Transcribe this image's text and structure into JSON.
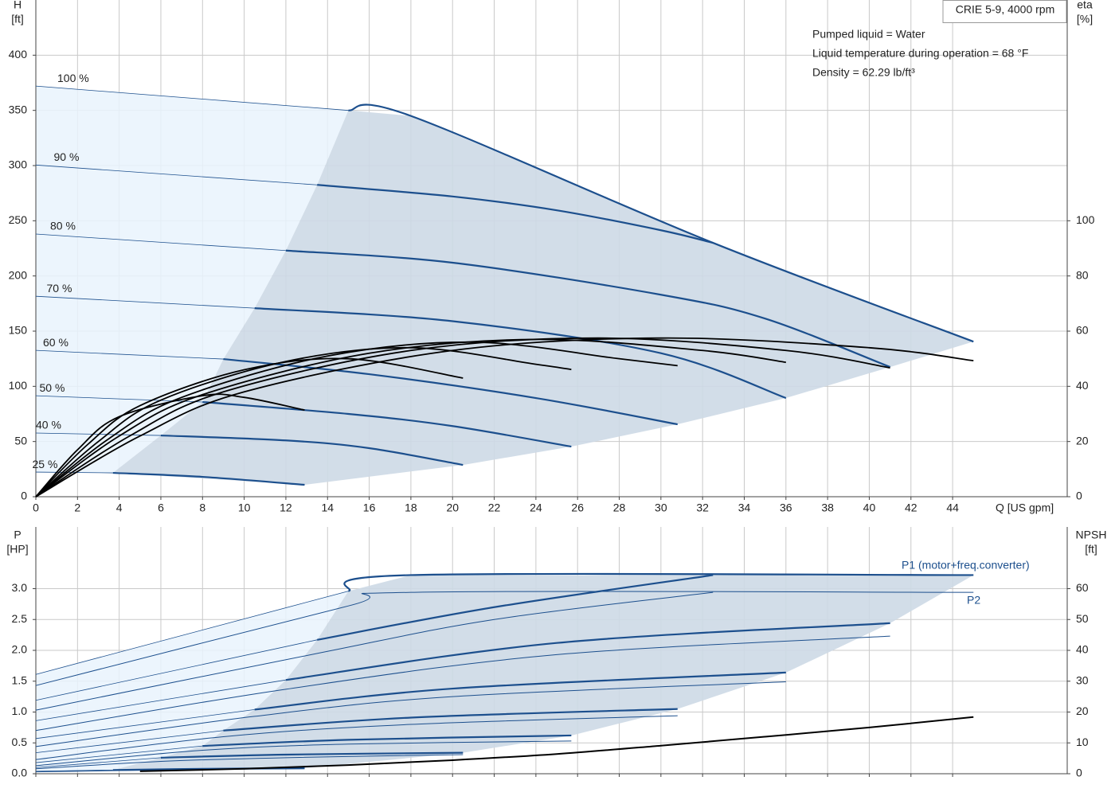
{
  "chart_data": [
    {
      "type": "line",
      "legend_box": "CRIE 5-9, 4000 rpm",
      "annotations": [
        "Pumped liquid = Water",
        "Liquid temperature during operation = 68 °F",
        "Density = 62.29 lb/ft³"
      ],
      "x_label": "Q [US gpm]",
      "y_label": "H",
      "y_unit": "[ft]",
      "y2_label": "eta",
      "y2_unit": "[%]",
      "xlim": [
        0,
        49.5
      ],
      "xticks": [
        0,
        2,
        4,
        6,
        8,
        10,
        12,
        14,
        16,
        18,
        20,
        22,
        24,
        26,
        28,
        30,
        32,
        34,
        36,
        38,
        40,
        42,
        44
      ],
      "x_tick_labels": true,
      "ylim": [
        0,
        450
      ],
      "yticks": [
        0,
        50,
        100,
        150,
        200,
        250,
        300,
        350,
        400
      ],
      "y2lim": [
        0,
        180
      ],
      "y2ticks": [
        0,
        20,
        40,
        60,
        80,
        100
      ],
      "grid": true,
      "curve_color": "#1c4f8d",
      "eta_color": "#000000",
      "area_color": "#cdd9e6",
      "light_area_color": "#e9f3fd",
      "series": [
        {
          "name": "100 %",
          "x": [
            0,
            15,
            18,
            32.5,
            45
          ],
          "values": [
            372,
            350,
            345,
            230,
            140.5
          ]
        },
        {
          "name": "90 %",
          "x": [
            0,
            13.5,
            20,
            25,
            30,
            32.5
          ],
          "values": [
            300.5,
            282.5,
            272,
            259.5,
            241.4,
            230
          ]
        },
        {
          "name": "80 %",
          "x": [
            0,
            12,
            20,
            30,
            35,
            41
          ],
          "values": [
            238,
            223,
            212,
            183,
            161.4,
            117.5
          ]
        },
        {
          "name": "70 %",
          "x": [
            0,
            10.5,
            20,
            30,
            36
          ],
          "values": [
            181.6,
            170.8,
            159,
            130,
            89.4
          ]
        },
        {
          "name": "60 %",
          "x": [
            0,
            9,
            16,
            24,
            30.8
          ],
          "values": [
            132.6,
            124.7,
            111,
            89.4,
            65.6
          ]
        },
        {
          "name": "50 %",
          "x": [
            0,
            8,
            15,
            20,
            25.7
          ],
          "values": [
            91.5,
            85.8,
            75,
            64,
            45.4
          ]
        },
        {
          "name": "40 %",
          "x": [
            0,
            6,
            12,
            16,
            20.5
          ],
          "values": [
            57.7,
            55.5,
            51,
            44,
            28.8
          ]
        },
        {
          "name": "25 %",
          "x": [
            0,
            3.7,
            8,
            12.9
          ],
          "values": [
            22.3,
            21.6,
            18,
            10.8
          ]
        }
      ],
      "eta_series": [
        {
          "x": [
            0,
            5,
            10,
            20,
            30,
            40,
            45
          ],
          "values": [
            0,
            22,
            38,
            53,
            57.5,
            54,
            49.3
          ]
        },
        {
          "x": [
            0,
            4.5,
            9,
            18,
            27,
            36,
            41
          ],
          "values": [
            0,
            22,
            38,
            53,
            57.5,
            53,
            46.7
          ]
        },
        {
          "x": [
            0,
            4,
            8,
            16,
            24,
            32,
            36
          ],
          "values": [
            0,
            22,
            37,
            52,
            57,
            53,
            48.7
          ]
        },
        {
          "x": [
            0,
            3.5,
            7,
            14,
            21,
            28,
            30.8
          ],
          "values": [
            0,
            21,
            36,
            51,
            56,
            50,
            47.5
          ]
        },
        {
          "x": [
            0,
            3,
            6,
            12,
            18,
            24,
            25.7
          ],
          "values": [
            0,
            20,
            35,
            49,
            54,
            48,
            46.1
          ]
        },
        {
          "x": [
            0,
            2.5,
            5,
            10,
            15,
            20.5
          ],
          "values": [
            0,
            19,
            33,
            46,
            50,
            43
          ]
        },
        {
          "x": [
            0,
            2,
            4,
            8,
            10,
            12.9
          ],
          "values": [
            0,
            17,
            29,
            36.6,
            36,
            31.4
          ]
        }
      ]
    },
    {
      "type": "line",
      "y_label": "P",
      "y_unit": "[HP]",
      "y2_label": "NPSH",
      "y2_unit": "[ft]",
      "p1_label": "P1 (motor+freq.converter)",
      "p2_label": "P2",
      "xlim": [
        0,
        49.5
      ],
      "xticks": [
        0,
        2,
        4,
        6,
        8,
        10,
        12,
        14,
        16,
        18,
        20,
        22,
        24,
        26,
        28,
        30,
        32,
        34,
        36,
        38,
        40,
        42,
        44
      ],
      "x_tick_labels": false,
      "ylim": [
        0,
        4
      ],
      "yticks": [
        {
          "value": 0,
          "label": "0.0"
        },
        0.5,
        {
          "value": 1,
          "label": "1.0"
        },
        1.5,
        {
          "value": 2,
          "label": "2.0"
        },
        2.5,
        {
          "value": 3,
          "label": "3.0"
        }
      ],
      "y2lim": [
        0,
        80
      ],
      "y2ticks": [
        0,
        10,
        20,
        30,
        40,
        50,
        60
      ],
      "grid": true,
      "curve_color": "#1c4f8d",
      "eta_color": "#000000",
      "area_color": "#cdd9e6",
      "light_area_color": "#e9f3fd",
      "p1_series": [
        {
          "x": [
            0,
            15,
            18,
            45
          ],
          "values": [
            1.61,
            2.96,
            3.22,
            3.22
          ]
        },
        {
          "x": [
            0,
            13.5,
            22,
            32.5
          ],
          "values": [
            1.19,
            2.17,
            2.7,
            3.22
          ]
        },
        {
          "x": [
            0,
            12,
            25,
            41
          ],
          "values": [
            0.86,
            1.52,
            2.12,
            2.44
          ]
        },
        {
          "x": [
            0,
            10.5,
            20,
            36
          ],
          "values": [
            0.57,
            1.04,
            1.38,
            1.64
          ]
        },
        {
          "x": [
            0,
            9,
            18,
            30.8
          ],
          "values": [
            0.34,
            0.7,
            0.91,
            1.05
          ]
        },
        {
          "x": [
            0,
            8,
            15,
            25.7
          ],
          "values": [
            0.18,
            0.45,
            0.55,
            0.62
          ]
        },
        {
          "x": [
            0,
            6,
            12,
            20.5
          ],
          "values": [
            0.1,
            0.26,
            0.31,
            0.34
          ]
        },
        {
          "x": [
            0,
            3.7,
            8,
            12.9
          ],
          "values": [
            0.04,
            0.06,
            0.08,
            0.09
          ]
        }
      ],
      "p2_series": [
        {
          "x": [
            0,
            15,
            18,
            45
          ],
          "values": [
            1.43,
            2.72,
            2.94,
            2.94
          ]
        },
        {
          "x": [
            0,
            13.5,
            22,
            32.5
          ],
          "values": [
            1.03,
            1.95,
            2.5,
            2.94
          ]
        },
        {
          "x": [
            0,
            12,
            25,
            41
          ],
          "values": [
            0.7,
            1.37,
            1.93,
            2.23
          ]
        },
        {
          "x": [
            0,
            10.5,
            20,
            36
          ],
          "values": [
            0.44,
            0.93,
            1.25,
            1.49
          ]
        },
        {
          "x": [
            0,
            9,
            18,
            30.8
          ],
          "values": [
            0.23,
            0.6,
            0.8,
            0.94
          ]
        },
        {
          "x": [
            0,
            8,
            15,
            25.7
          ],
          "values": [
            0.13,
            0.38,
            0.48,
            0.53
          ]
        },
        {
          "x": [
            0,
            6,
            12,
            20.5
          ],
          "values": [
            0.08,
            0.2,
            0.26,
            0.31
          ]
        },
        {
          "x": [
            0,
            3.7,
            8,
            12.9
          ],
          "values": [
            0.03,
            0.05,
            0.07,
            0.08
          ]
        }
      ],
      "npsh": {
        "x": [
          5,
          10,
          15,
          20,
          25,
          30,
          35,
          40,
          45
        ],
        "values": [
          0.8,
          1.6,
          2.8,
          4.4,
          6.4,
          9.1,
          12,
          15,
          18.4
        ]
      }
    }
  ]
}
